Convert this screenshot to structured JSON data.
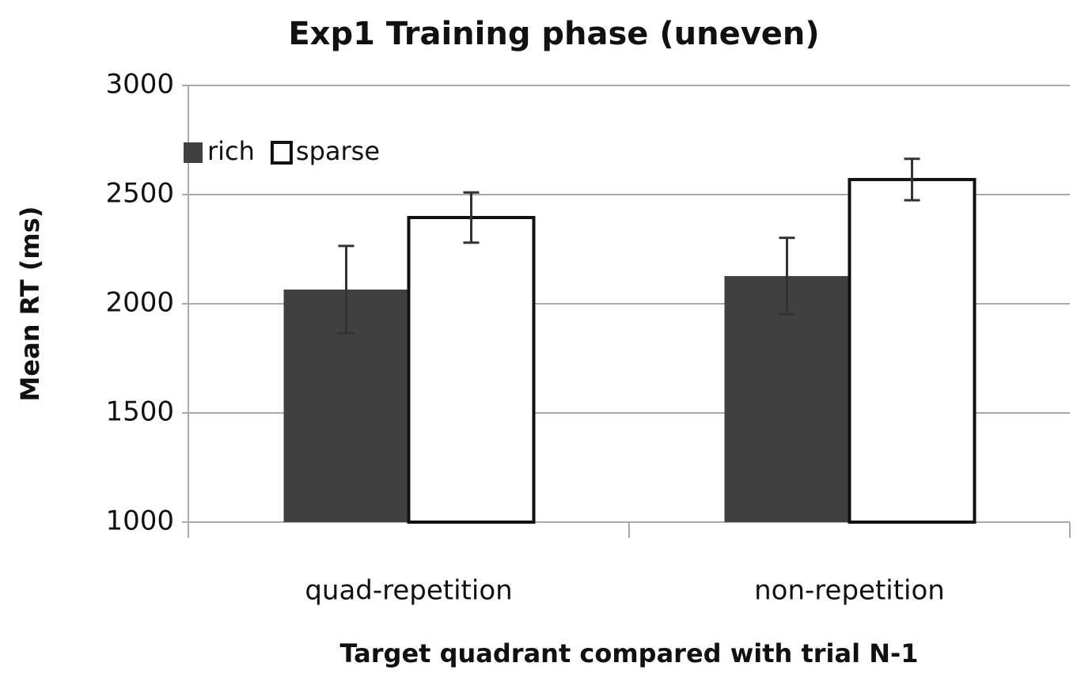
{
  "chart_data": {
    "type": "bar",
    "title": "Exp1 Training phase (uneven)",
    "x_label": "Target quadrant compared with trial N-1",
    "y_label": "Mean RT (ms)",
    "categories": [
      "quad-repetition",
      "non-repetition"
    ],
    "series": [
      {
        "name": "rich",
        "color": "#404040",
        "values": [
          2065,
          2127
        ],
        "errors": [
          200,
          175
        ]
      },
      {
        "name": "sparse",
        "color": "#ffffff",
        "values": [
          2395,
          2569
        ],
        "errors": [
          115,
          95
        ]
      }
    ],
    "ylim": [
      1000,
      3000
    ],
    "yticks": [
      1000,
      1500,
      2000,
      2500,
      3000
    ],
    "grid": true,
    "legend": "upper left"
  }
}
